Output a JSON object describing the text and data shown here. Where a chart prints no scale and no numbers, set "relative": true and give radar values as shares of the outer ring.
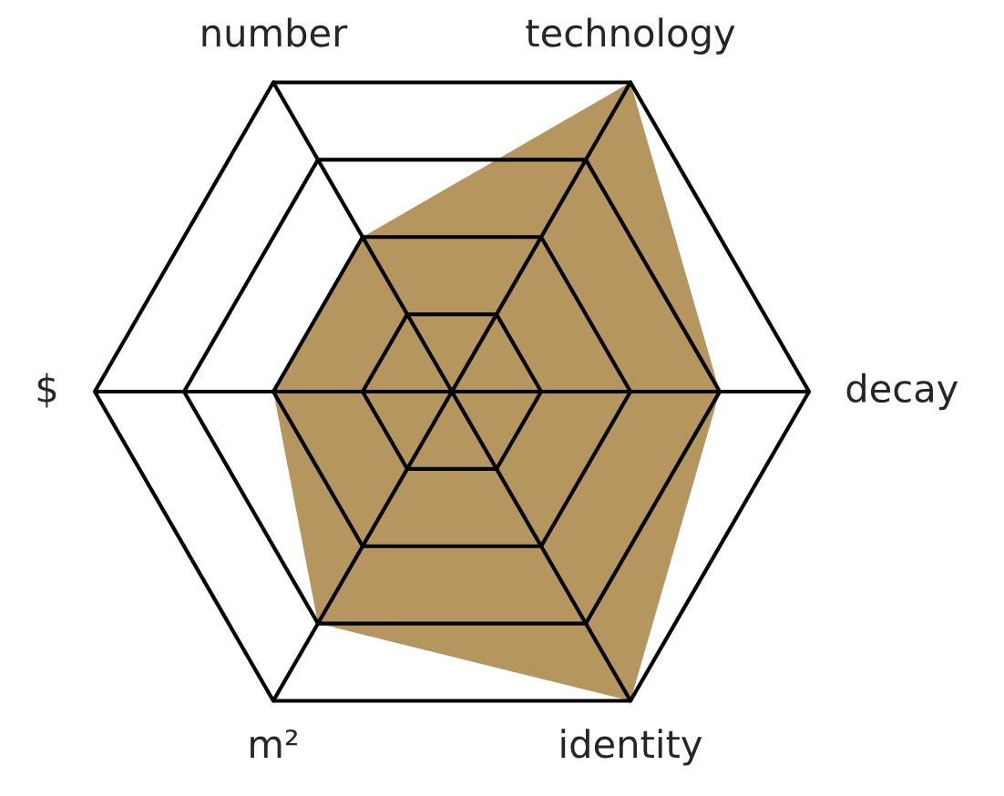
{
  "chart_data": {
    "type": "radar",
    "relative": true,
    "grid": true,
    "categories": [
      "technology",
      "decay",
      "identity",
      "m²",
      "$",
      "number"
    ],
    "series": [
      {
        "color": "#b5965e",
        "values": [
          1.0,
          0.75,
          1.0,
          0.75,
          0.5,
          0.5
        ]
      }
    ]
  }
}
